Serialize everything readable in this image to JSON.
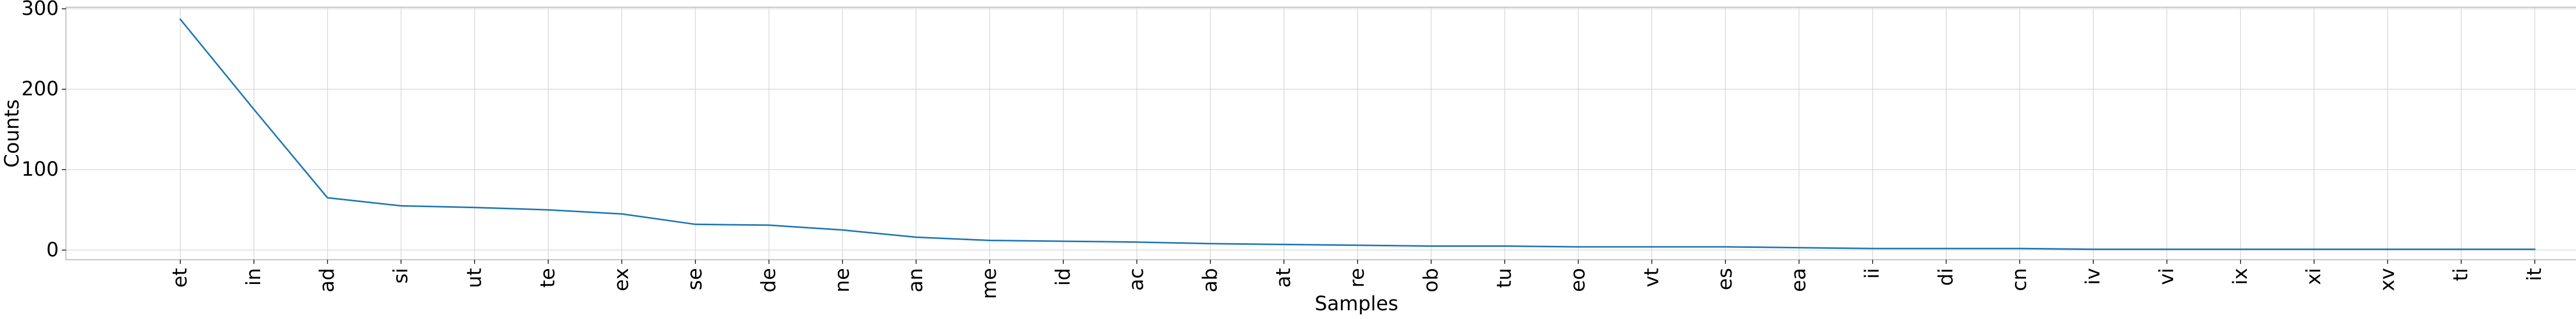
{
  "chart_data": {
    "type": "line",
    "xlabel": "Samples",
    "ylabel": "Counts",
    "categories": [
      "et",
      "in",
      "ad",
      "si",
      "ut",
      "te",
      "ex",
      "se",
      "de",
      "ne",
      "an",
      "me",
      "id",
      "ac",
      "ab",
      "at",
      "re",
      "ob",
      "tu",
      "eo",
      "vt",
      "es",
      "ea",
      "ii",
      "di",
      "cn",
      "iv",
      "vi",
      "ix",
      "xi",
      "xv",
      "ti",
      "it"
    ],
    "series": [
      {
        "name": "",
        "values": [
          287,
          175,
          65,
          55,
          53,
          50,
          45,
          32,
          31,
          25,
          16,
          12,
          11,
          10,
          8,
          7,
          6,
          5,
          5,
          4,
          4,
          4,
          3,
          2,
          2,
          2,
          1,
          1,
          1,
          1,
          1,
          1,
          1
        ]
      }
    ],
    "ylim": [
      -12,
      302
    ],
    "yticks": [
      0,
      100,
      200,
      300
    ],
    "grid": true,
    "line_color": "#1f77b4",
    "grid_color": "#d9d9d9",
    "axis_color": "#bfbfbf"
  }
}
